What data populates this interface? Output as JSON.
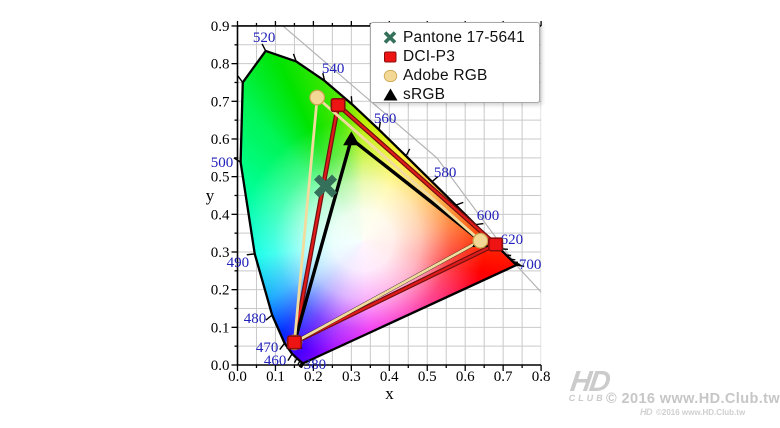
{
  "watermark": {
    "logo_text": "HD",
    "logo_sub": "CLUB",
    "line1": "© 2016  www.HD.Club.tw",
    "mini_logo_text": "HD",
    "line2": "©2016 www.HD.Club.tw"
  },
  "chart_data": {
    "type": "scatter",
    "subtype": "cie-1931-chromaticity-diagram",
    "xlabel": "x",
    "ylabel": "y",
    "xlim": [
      0.0,
      0.8
    ],
    "ylim": [
      0.0,
      0.9
    ],
    "xticks": [
      "0.0",
      "0.1",
      "0.2",
      "0.3",
      "0.4",
      "0.5",
      "0.6",
      "0.7",
      "0.8"
    ],
    "yticks": [
      "0.0",
      "0.1",
      "0.2",
      "0.3",
      "0.4",
      "0.5",
      "0.6",
      "0.7",
      "0.8",
      "0.9"
    ],
    "grid": true,
    "grid_step": 0.05,
    "colors": {
      "grid": "#c9c9c9",
      "spine": "#000000",
      "wavelength_label": "#2121bb",
      "ruler_line": "#b3b3b3",
      "locus_outline": "#000000",
      "tick_label": "#000000"
    },
    "wavelength_labels": [
      {
        "text": "380",
        "x": 0.204,
        "y": 0.002
      },
      {
        "text": "460",
        "x": 0.099,
        "y": 0.013
      },
      {
        "text": "470",
        "x": 0.078,
        "y": 0.048
      },
      {
        "text": "480",
        "x": 0.046,
        "y": 0.125
      },
      {
        "text": "490",
        "x": 0.001,
        "y": 0.273
      },
      {
        "text": "500",
        "x": -0.041,
        "y": 0.539
      },
      {
        "text": "520",
        "x": 0.07,
        "y": 0.871
      },
      {
        "text": "540",
        "x": 0.252,
        "y": 0.789
      },
      {
        "text": "560",
        "x": 0.389,
        "y": 0.656
      },
      {
        "text": "580",
        "x": 0.547,
        "y": 0.512
      },
      {
        "text": "600",
        "x": 0.66,
        "y": 0.398
      },
      {
        "text": "620",
        "x": 0.723,
        "y": 0.334
      },
      {
        "text": "700",
        "x": 0.771,
        "y": 0.268
      }
    ],
    "spectral_locus": [
      [
        380,
        0.1741,
        0.005
      ],
      [
        390,
        0.1738,
        0.0049
      ],
      [
        400,
        0.1733,
        0.0048
      ],
      [
        410,
        0.1726,
        0.0048
      ],
      [
        420,
        0.1714,
        0.0051
      ],
      [
        430,
        0.1689,
        0.0069
      ],
      [
        440,
        0.1644,
        0.0109
      ],
      [
        450,
        0.1566,
        0.0177
      ],
      [
        460,
        0.144,
        0.0297
      ],
      [
        470,
        0.1241,
        0.0578
      ],
      [
        480,
        0.0913,
        0.1327
      ],
      [
        490,
        0.0454,
        0.295
      ],
      [
        500,
        0.0082,
        0.5384
      ],
      [
        510,
        0.0139,
        0.7502
      ],
      [
        520,
        0.0743,
        0.8338
      ],
      [
        530,
        0.1547,
        0.8059
      ],
      [
        540,
        0.2296,
        0.7543
      ],
      [
        550,
        0.3016,
        0.6923
      ],
      [
        560,
        0.3731,
        0.6245
      ],
      [
        570,
        0.4441,
        0.5547
      ],
      [
        580,
        0.5125,
        0.4866
      ],
      [
        590,
        0.5752,
        0.4242
      ],
      [
        600,
        0.627,
        0.3725
      ],
      [
        610,
        0.6658,
        0.334
      ],
      [
        620,
        0.6915,
        0.3083
      ],
      [
        630,
        0.7079,
        0.292
      ],
      [
        640,
        0.719,
        0.2809
      ],
      [
        650,
        0.726,
        0.274
      ],
      [
        660,
        0.73,
        0.27
      ],
      [
        670,
        0.732,
        0.268
      ],
      [
        680,
        0.7334,
        0.2666
      ],
      [
        690,
        0.7344,
        0.2656
      ],
      [
        700,
        0.7347,
        0.2653
      ]
    ],
    "series": [
      {
        "name": "sRGB",
        "kind": "gamut-triangle",
        "marker": "triangle",
        "marker_color": "#000000",
        "line_color": "#000000",
        "points": [
          [
            0.64,
            0.33
          ],
          [
            0.3,
            0.6
          ],
          [
            0.15,
            0.06
          ]
        ]
      },
      {
        "name": "Adobe RGB",
        "kind": "gamut-triangle",
        "marker": "circle",
        "marker_color": "#f3d794",
        "marker_edge": "#c9a24d",
        "line_color": "#f1dc9e",
        "points": [
          [
            0.64,
            0.33
          ],
          [
            0.21,
            0.71
          ],
          [
            0.15,
            0.06
          ]
        ]
      },
      {
        "name": "DCI-P3",
        "kind": "gamut-triangle",
        "marker": "square",
        "marker_color": "#ee1414",
        "marker_edge": "#8a0e0e",
        "line_color": "#e11a1a",
        "line_edge": "#701010",
        "points": [
          [
            0.68,
            0.32
          ],
          [
            0.265,
            0.69
          ],
          [
            0.15,
            0.06
          ]
        ]
      },
      {
        "name": "Pantone 17-5641",
        "kind": "point",
        "marker": "x",
        "marker_color": "#35705a",
        "points": [
          [
            0.232,
            0.475
          ]
        ]
      }
    ],
    "legend_order": [
      "Pantone 17-5641",
      "DCI-P3",
      "Adobe RGB",
      "sRGB"
    ],
    "legend_position": "top-right"
  }
}
